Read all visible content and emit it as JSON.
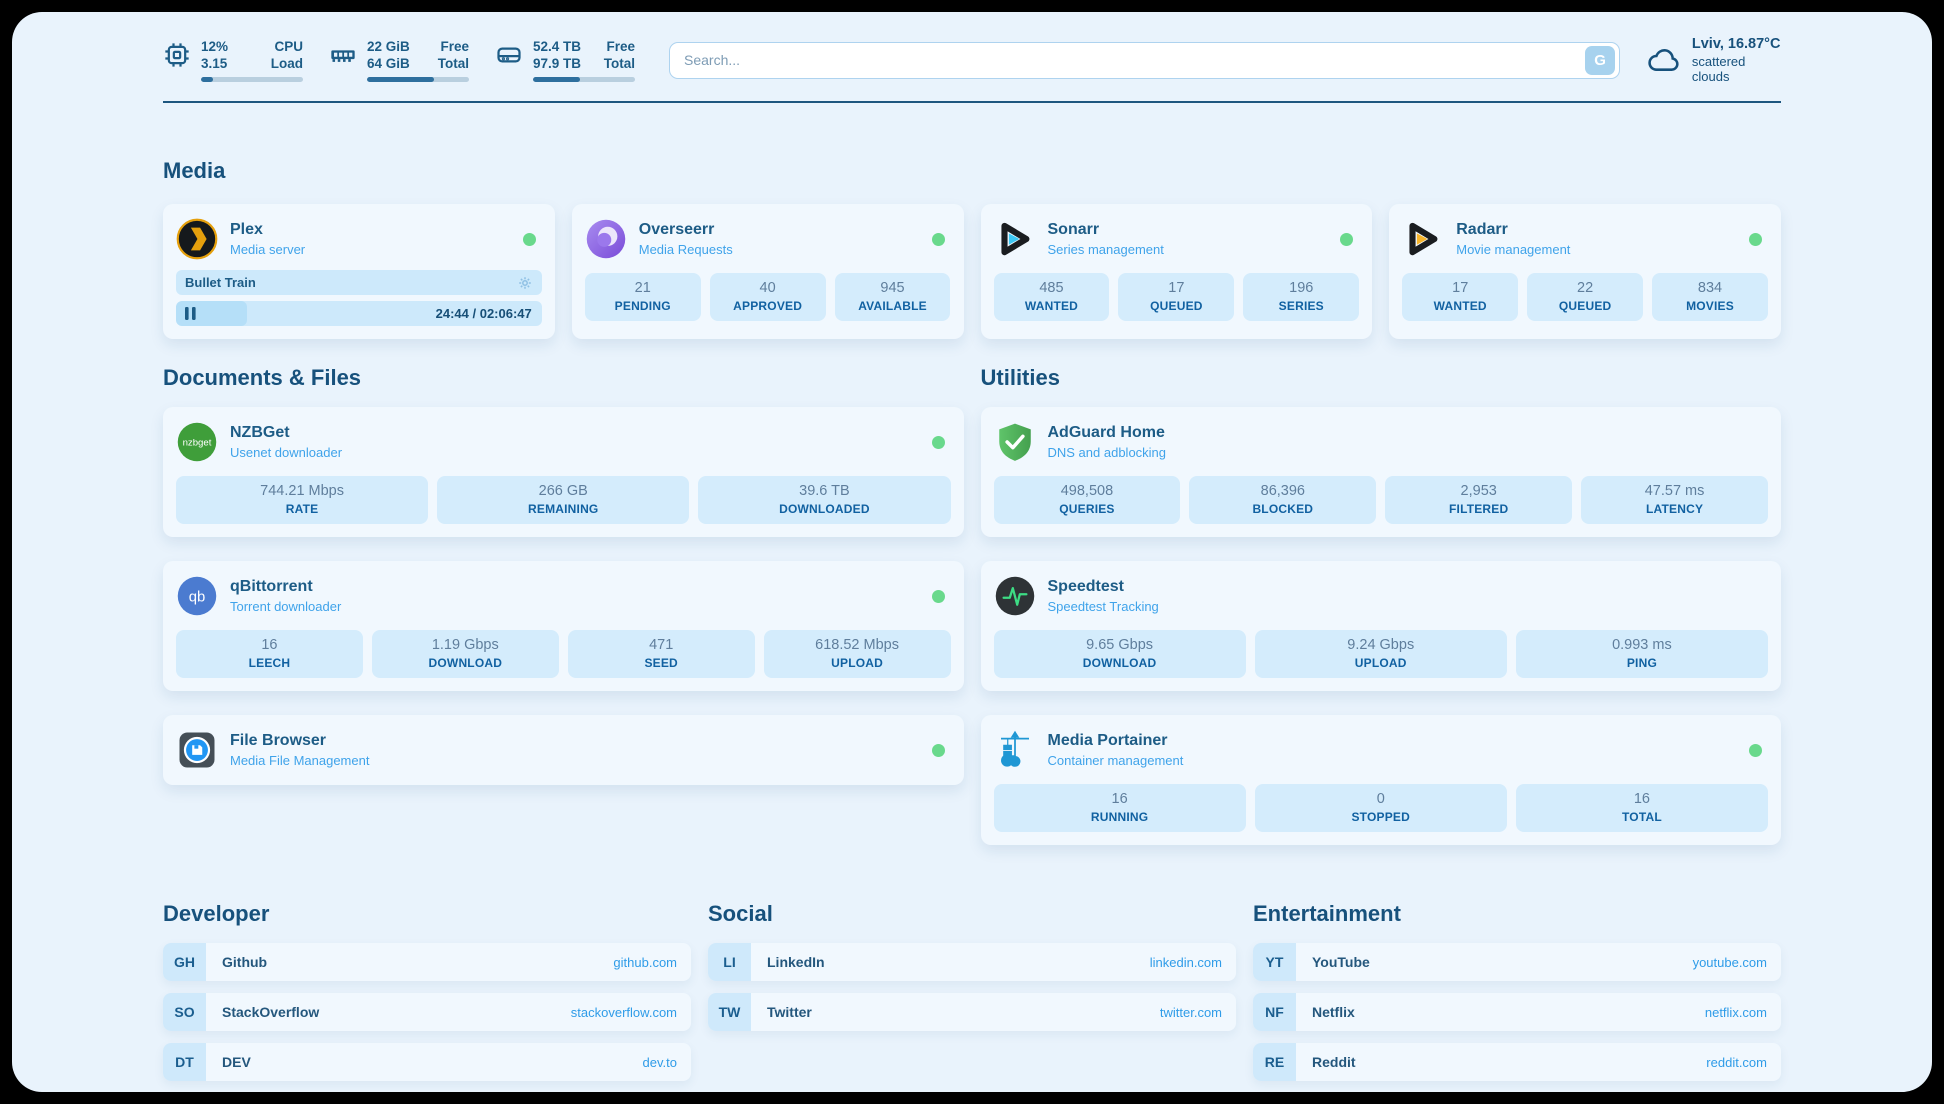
{
  "header": {
    "stats": [
      {
        "icon": "cpu-icon",
        "v1": "12%",
        "l1": "CPU",
        "v2": "3.15",
        "l2": "Load",
        "pct": 12
      },
      {
        "icon": "ram-icon",
        "v1": "22 GiB",
        "l1": "Free",
        "v2": "64 GiB",
        "l2": "Total",
        "pct": 66
      },
      {
        "icon": "disk-icon",
        "v1": "52.4 TB",
        "l1": "Free",
        "v2": "97.9 TB",
        "l2": "Total",
        "pct": 46
      }
    ],
    "search": {
      "placeholder": "Search...",
      "button_label": "G"
    },
    "weather": {
      "line1": "Lviv, 16.87°C",
      "line2": "scattered clouds"
    }
  },
  "media": {
    "heading": "Media",
    "plex": {
      "title": "Plex",
      "subtitle": "Media server",
      "now_playing": "Bullet Train",
      "time": "24:44 / 02:06:47",
      "progress_pct": 19.5
    },
    "overseerr": {
      "title": "Overseerr",
      "subtitle": "Media Requests",
      "stats": [
        {
          "value": "21",
          "label": "PENDING"
        },
        {
          "value": "40",
          "label": "APPROVED"
        },
        {
          "value": "945",
          "label": "AVAILABLE"
        }
      ]
    },
    "sonarr": {
      "title": "Sonarr",
      "subtitle": "Series management",
      "stats": [
        {
          "value": "485",
          "label": "WANTED"
        },
        {
          "value": "17",
          "label": "QUEUED"
        },
        {
          "value": "196",
          "label": "SERIES"
        }
      ]
    },
    "radarr": {
      "title": "Radarr",
      "subtitle": "Movie management",
      "stats": [
        {
          "value": "17",
          "label": "WANTED"
        },
        {
          "value": "22",
          "label": "QUEUED"
        },
        {
          "value": "834",
          "label": "MOVIES"
        }
      ]
    }
  },
  "documents": {
    "heading": "Documents & Files",
    "nzbget": {
      "title": "NZBGet",
      "subtitle": "Usenet downloader",
      "icon_text": "nzbget",
      "stats": [
        {
          "value": "744.21 Mbps",
          "label": "RATE"
        },
        {
          "value": "266 GB",
          "label": "REMAINING"
        },
        {
          "value": "39.6 TB",
          "label": "DOWNLOADED"
        }
      ]
    },
    "qbittorrent": {
      "title": "qBittorrent",
      "subtitle": "Torrent downloader",
      "icon_text": "qb",
      "stats": [
        {
          "value": "16",
          "label": "LEECH"
        },
        {
          "value": "1.19 Gbps",
          "label": "DOWNLOAD"
        },
        {
          "value": "471",
          "label": "SEED"
        },
        {
          "value": "618.52 Mbps",
          "label": "UPLOAD"
        }
      ]
    },
    "filebrowser": {
      "title": "File Browser",
      "subtitle": "Media File Management"
    }
  },
  "utilities": {
    "heading": "Utilities",
    "adguard": {
      "title": "AdGuard Home",
      "subtitle": "DNS and adblocking",
      "stats": [
        {
          "value": "498,508",
          "label": "QUERIES"
        },
        {
          "value": "86,396",
          "label": "BLOCKED"
        },
        {
          "value": "2,953",
          "label": "FILTERED"
        },
        {
          "value": "47.57 ms",
          "label": "LATENCY"
        }
      ]
    },
    "speedtest": {
      "title": "Speedtest",
      "subtitle": "Speedtest Tracking",
      "stats": [
        {
          "value": "9.65 Gbps",
          "label": "DOWNLOAD"
        },
        {
          "value": "9.24 Gbps",
          "label": "UPLOAD"
        },
        {
          "value": "0.993 ms",
          "label": "PING"
        }
      ]
    },
    "portainer": {
      "title": "Media Portainer",
      "subtitle": "Container management",
      "stats": [
        {
          "value": "16",
          "label": "RUNNING"
        },
        {
          "value": "0",
          "label": "STOPPED"
        },
        {
          "value": "16",
          "label": "TOTAL"
        }
      ]
    }
  },
  "links": {
    "developer": {
      "heading": "Developer",
      "items": [
        {
          "abbr": "GH",
          "name": "Github",
          "url": "github.com"
        },
        {
          "abbr": "SO",
          "name": "StackOverflow",
          "url": "stackoverflow.com"
        },
        {
          "abbr": "DT",
          "name": "DEV",
          "url": "dev.to"
        }
      ]
    },
    "social": {
      "heading": "Social",
      "items": [
        {
          "abbr": "LI",
          "name": "LinkedIn",
          "url": "linkedin.com"
        },
        {
          "abbr": "TW",
          "name": "Twitter",
          "url": "twitter.com"
        }
      ]
    },
    "entertainment": {
      "heading": "Entertainment",
      "items": [
        {
          "abbr": "YT",
          "name": "YouTube",
          "url": "youtube.com"
        },
        {
          "abbr": "NF",
          "name": "Netflix",
          "url": "netflix.com"
        },
        {
          "abbr": "RE",
          "name": "Reddit",
          "url": "reddit.com"
        }
      ]
    }
  },
  "colors": {
    "accent": "#1d5c86",
    "subtitle": "#3fa3ea",
    "status_ok": "#69d98c",
    "stat_bg": "#d4ecfc",
    "page_bg": "#e9f3fc"
  }
}
